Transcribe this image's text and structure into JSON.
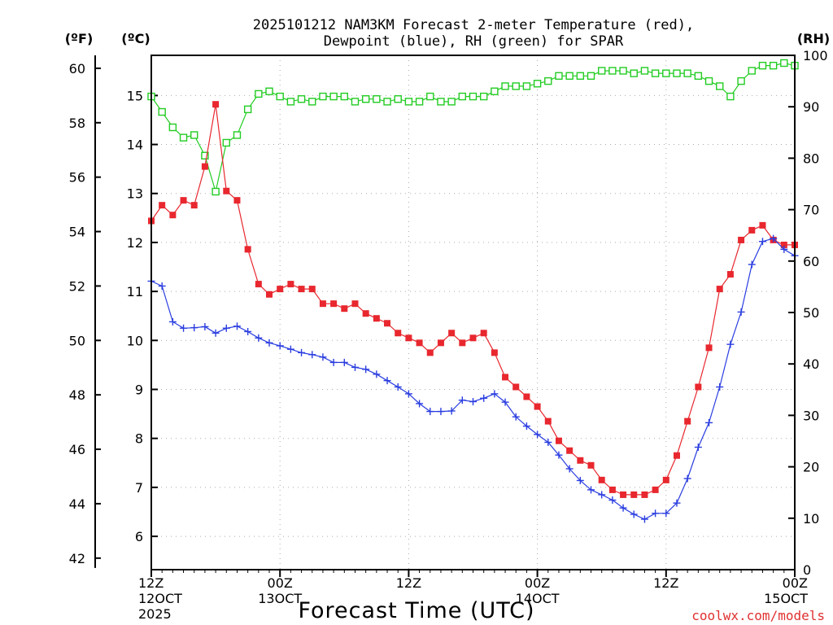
{
  "chart_data": {
    "type": "line",
    "title_line1": "2025101212 NAM3KM Forecast 2-meter Temperature (red),",
    "title_line2": "Dewpoint (blue), RH (green) for SPAR",
    "left_axis_label": "(ºF)",
    "celsius_axis_label": "(ºC)",
    "right_axis_label": "(RH)",
    "xlabel": "Forecast Time (UTC)",
    "watermark": "coolwx.com/models",
    "x_range_hours": [
      0,
      60
    ],
    "celsius_range": [
      5.32,
      15.82
    ],
    "rh_range": [
      0,
      100
    ],
    "fahrenheit_ticks": [
      "42",
      "44",
      "46",
      "48",
      "50",
      "52",
      "54",
      "56",
      "58",
      "60"
    ],
    "celsius_ticks": [
      "6",
      "7",
      "8",
      "9",
      "10",
      "11",
      "12",
      "13",
      "14",
      "15"
    ],
    "rh_ticks": [
      "0",
      "10",
      "20",
      "30",
      "40",
      "50",
      "60",
      "70",
      "80",
      "90",
      "100"
    ],
    "x_ticks": [
      {
        "hour": 0,
        "line1": "12Z",
        "line2": "12OCT",
        "line3": "2025"
      },
      {
        "hour": 12,
        "line1": "00Z",
        "line2": "13OCT",
        "line3": ""
      },
      {
        "hour": 24,
        "line1": "12Z",
        "line2": "",
        "line3": ""
      },
      {
        "hour": 36,
        "line1": "00Z",
        "line2": "14OCT",
        "line3": ""
      },
      {
        "hour": 48,
        "line1": "12Z",
        "line2": "",
        "line3": ""
      },
      {
        "hour": 60,
        "line1": "00Z",
        "line2": "15OCT",
        "line3": ""
      }
    ],
    "series": [
      {
        "name": "Temperature",
        "units": "C",
        "color": "#e8272e",
        "marker": "filled-square",
        "values": [
          12.44,
          12.76,
          12.56,
          12.86,
          12.76,
          13.55,
          14.82,
          13.05,
          12.86,
          11.86,
          11.15,
          10.94,
          11.05,
          11.15,
          11.05,
          11.05,
          10.75,
          10.75,
          10.65,
          10.75,
          10.55,
          10.45,
          10.35,
          10.15,
          10.05,
          9.95,
          9.75,
          9.95,
          10.15,
          9.95,
          10.05,
          10.15,
          9.75,
          9.25,
          9.05,
          8.85,
          8.65,
          8.35,
          7.95,
          7.75,
          7.55,
          7.45,
          7.15,
          6.95,
          6.85,
          6.85,
          6.85,
          6.95,
          7.15,
          7.65,
          8.35,
          9.05,
          9.85,
          11.05,
          11.35,
          12.05,
          12.25,
          12.35,
          12.05,
          11.95,
          11.95
        ]
      },
      {
        "name": "Dewpoint",
        "units": "C",
        "color": "#2a3de0",
        "marker": "plus",
        "values": [
          11.21,
          11.11,
          10.38,
          10.25,
          10.26,
          10.28,
          10.15,
          10.25,
          10.29,
          10.18,
          10.05,
          9.95,
          9.89,
          9.82,
          9.75,
          9.71,
          9.66,
          9.55,
          9.55,
          9.45,
          9.41,
          9.31,
          9.18,
          9.05,
          8.91,
          8.71,
          8.55,
          8.55,
          8.56,
          8.78,
          8.75,
          8.82,
          8.91,
          8.74,
          8.44,
          8.25,
          8.08,
          7.92,
          7.66,
          7.38,
          7.14,
          6.95,
          6.85,
          6.74,
          6.58,
          6.45,
          6.35,
          6.47,
          6.47,
          6.68,
          7.18,
          7.82,
          8.32,
          9.05,
          9.92,
          10.58,
          11.55,
          12.02,
          12.08,
          11.86,
          11.73
        ]
      },
      {
        "name": "RH",
        "units": "%",
        "color": "#22cc22",
        "marker": "open-square",
        "values": [
          92,
          89,
          86,
          84,
          84.5,
          80.5,
          73.5,
          83,
          84.5,
          89.5,
          92.5,
          93,
          92,
          91,
          91.5,
          91,
          92,
          92,
          92,
          91,
          91.5,
          91.5,
          91,
          91.5,
          91,
          91,
          92,
          91,
          91,
          92,
          92,
          92,
          93,
          94,
          94,
          94,
          94.5,
          95,
          96,
          96,
          96,
          96,
          97,
          97,
          97,
          96.5,
          97,
          96.5,
          96.5,
          96.5,
          96.5,
          96,
          95,
          94,
          92,
          95,
          97,
          98,
          98,
          98.5,
          98
        ]
      }
    ]
  }
}
